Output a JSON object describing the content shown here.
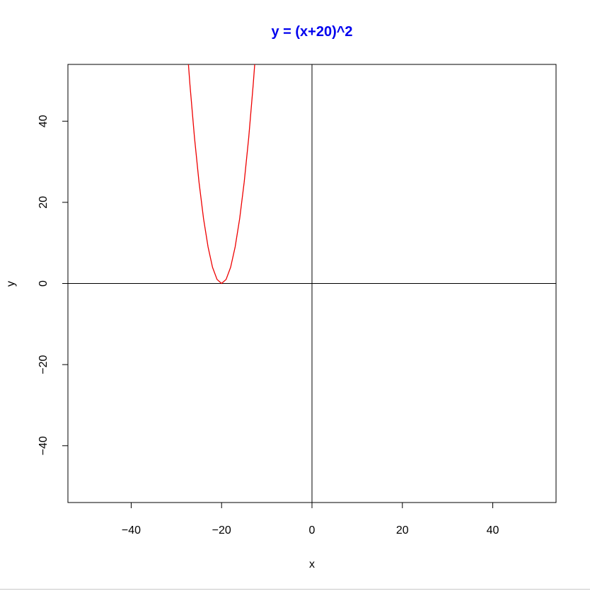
{
  "chart_data": {
    "type": "line",
    "title": "y = (x+20)^2",
    "xlabel": "x",
    "ylabel": "y",
    "xlim": [
      -54,
      54
    ],
    "ylim": [
      -54,
      54
    ],
    "xticks": [
      -40,
      -20,
      0,
      20,
      40
    ],
    "yticks": [
      -40,
      -20,
      0,
      20,
      40
    ],
    "reference_lines": {
      "h": 0,
      "v": 0
    },
    "grid": false,
    "legend": "none",
    "series": [
      {
        "x": [
          -28,
          -27,
          -26,
          -25,
          -24,
          -23,
          -22,
          -21,
          -20,
          -19,
          -18,
          -17,
          -16,
          -15,
          -14,
          -13,
          -12
        ],
        "y": [
          64,
          49,
          36,
          25,
          16,
          9,
          4,
          1,
          0,
          1,
          4,
          9,
          16,
          25,
          36,
          49,
          64
        ]
      }
    ],
    "colors": {
      "title": "#0000ee",
      "series": "#ee0000",
      "axes": "#000000"
    }
  }
}
